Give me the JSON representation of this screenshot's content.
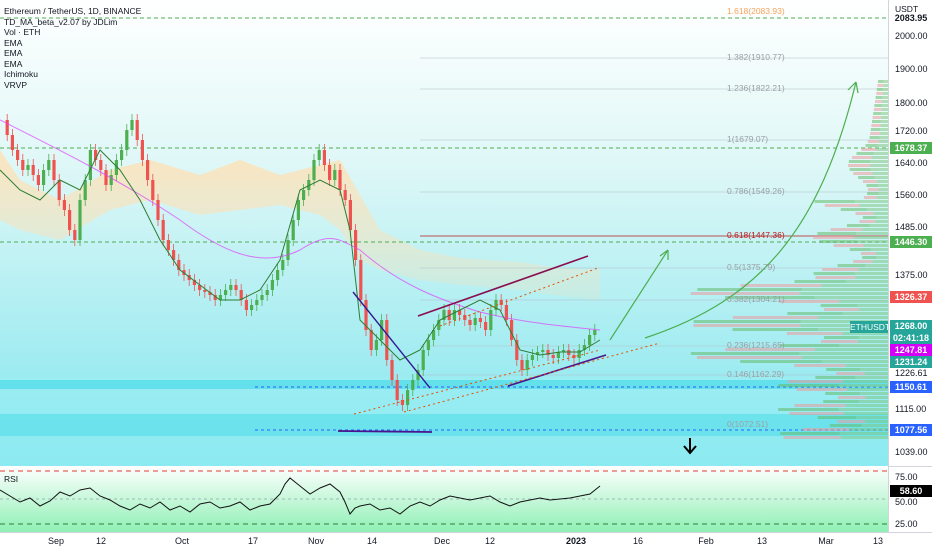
{
  "header": {
    "symbol_title": "Ethereum / TetherUS, 1D, BINANCE",
    "indicators": [
      "TD_MA_beta_v2.07 by JDLim",
      "Vol · ETH",
      "EMA",
      "EMA",
      "EMA",
      "Ichimoku",
      "VRVP"
    ]
  },
  "price_scale": {
    "currency": "USDT",
    "ticks": [
      "2000.00",
      "1900.00",
      "1800.00",
      "1720.00",
      "1640.00",
      "1560.00",
      "1485.00",
      "1375.00",
      "1226.61",
      "1115.00",
      "1039.00"
    ],
    "badges": [
      {
        "label": "2083.95",
        "color": "#ffffff",
        "text": "#131722"
      },
      {
        "label": "1678.37",
        "color": "#4caf50",
        "text": "#ffffff"
      },
      {
        "label": "1446.30",
        "color": "#4caf50",
        "text": "#ffffff"
      },
      {
        "label": "1326.37",
        "color": "#ef5350",
        "text": "#ffffff"
      },
      {
        "label": "1268.00",
        "color": "#26a69a",
        "text": "#ffffff"
      },
      {
        "label": "02:41:18",
        "color": "#26a69a",
        "text": "#ffffff"
      },
      {
        "label": "1247.81",
        "color": "#d500f9",
        "text": "#ffffff"
      },
      {
        "label": "1231.24",
        "color": "#26a69a",
        "text": "#ffffff"
      },
      {
        "label": "1150.61",
        "color": "#2962ff",
        "text": "#ffffff"
      },
      {
        "label": "1077.56",
        "color": "#2962ff",
        "text": "#ffffff"
      }
    ]
  },
  "symbol_tag": "ETHUSDT",
  "fib_levels": [
    {
      "label": "1.618(2083.93)",
      "color": "#f7a35c"
    },
    {
      "label": "1.382(1910.77)",
      "color": "#9aa0a6"
    },
    {
      "label": "1.236(1822.21)",
      "color": "#9aa0a6"
    },
    {
      "label": "1(1679.07)",
      "color": "#9aa0a6"
    },
    {
      "label": "0.786(1549.26)",
      "color": "#9aa0a6"
    },
    {
      "label": "0.618(1447.36)",
      "color": "#b71c1c"
    },
    {
      "label": "0.5(1375.79)",
      "color": "#9aa0a6"
    },
    {
      "label": "0.382(1304.21)",
      "color": "#9aa0a6"
    },
    {
      "label": "0.236(1215.65)",
      "color": "#9aa0a6"
    },
    {
      "label": "0.146(1162.29)",
      "color": "#9aa0a6"
    },
    {
      "label": "0(1072.51)",
      "color": "#9aa0a6"
    }
  ],
  "rsi": {
    "title": "RSI",
    "ticks": [
      "75.00",
      "50.00",
      "25.00"
    ],
    "value_badge": "58.60"
  },
  "time_axis": {
    "labels": [
      {
        "text": "Sep",
        "bold": false
      },
      {
        "text": "12",
        "bold": false
      },
      {
        "text": "Oct",
        "bold": false
      },
      {
        "text": "17",
        "bold": false
      },
      {
        "text": "Nov",
        "bold": false
      },
      {
        "text": "14",
        "bold": false
      },
      {
        "text": "Dec",
        "bold": false
      },
      {
        "text": "12",
        "bold": false
      },
      {
        "text": "2023",
        "bold": true
      },
      {
        "text": "16",
        "bold": false
      },
      {
        "text": "Feb",
        "bold": false
      },
      {
        "text": "13",
        "bold": false
      },
      {
        "text": "Mar",
        "bold": false
      },
      {
        "text": "13",
        "bold": false
      }
    ]
  },
  "colors": {
    "bull": "#4caf50",
    "bear": "#ef5350",
    "accent_blue": "#2962ff",
    "resistance_green": "#4caf50"
  }
}
